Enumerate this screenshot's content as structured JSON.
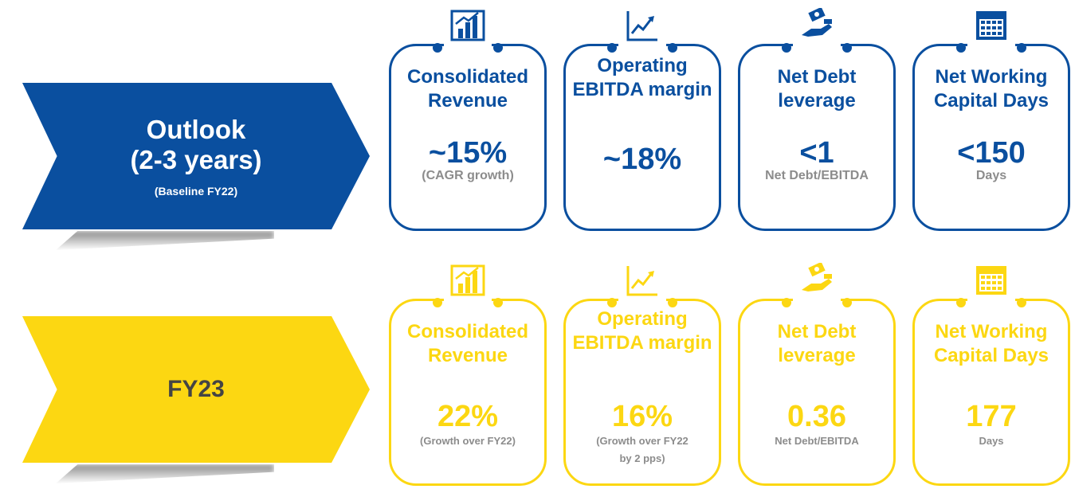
{
  "colors": {
    "primary": "#0a4f9f",
    "secondary": "#fcd712",
    "note": "#8c8c8c"
  },
  "rows": [
    {
      "banner": {
        "title_line1": "Outlook",
        "title_line2": "(2-3 years)",
        "subtitle": "(Baseline FY22)"
      },
      "cards": [
        {
          "icon": "bar-chart-icon",
          "title": "Consolidated Revenue",
          "value": "~15%",
          "note": "(CAGR growth)"
        },
        {
          "icon": "line-chart-icon",
          "title": "Operating EBITDA margin",
          "value": "~18%",
          "note": ""
        },
        {
          "icon": "money-hand-icon",
          "title": "Net Debt leverage",
          "value": "<1",
          "note": "Net Debt/EBITDA"
        },
        {
          "icon": "calendar-icon",
          "title": "Net Working Capital Days",
          "value": "<150",
          "note": "Days"
        }
      ]
    },
    {
      "banner": {
        "title_line1": "FY23",
        "title_line2": "",
        "subtitle": ""
      },
      "cards": [
        {
          "icon": "bar-chart-icon",
          "title": "Consolidated Revenue",
          "value": "22%",
          "note": "(Growth over FY22)"
        },
        {
          "icon": "line-chart-icon",
          "title": "Operating EBITDA margin",
          "value": "16%",
          "note_line1": "(Growth over FY22",
          "note_line2": "by 2 pps)"
        },
        {
          "icon": "money-hand-icon",
          "title": "Net Debt leverage",
          "value": "0.36",
          "note": "Net Debt/EBITDA"
        },
        {
          "icon": "calendar-icon",
          "title": "Net Working Capital Days",
          "value": "177",
          "note": "Days"
        }
      ]
    }
  ]
}
